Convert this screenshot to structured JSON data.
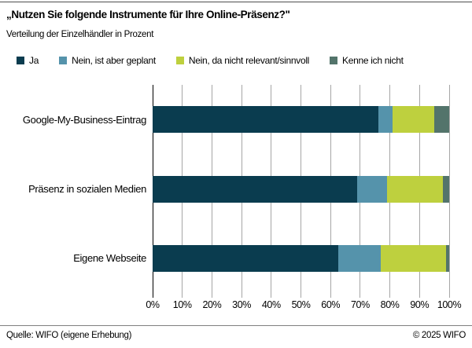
{
  "header": {
    "title": "„Nutzen Sie folgende Instrumente für Ihre Online-Präsenz?\"",
    "subtitle": "Verteilung der Einzelhändler in Prozent"
  },
  "footer": {
    "source": "Quelle: WIFO (eigene Erhebung)",
    "copyright": "© 2025 WIFO"
  },
  "colors": {
    "ja": "#0a3c4f",
    "geplant": "#5593ab",
    "nicht_relevant": "#bed03e",
    "kenne_nicht": "#53746b",
    "gridline": "#a6a6a6",
    "axis": "#000000"
  },
  "chart_data": {
    "type": "bar",
    "orientation": "horizontal-stacked",
    "title": "„Nutzen Sie folgende Instrumente für Ihre Online-Präsenz?\"",
    "subtitle": "Verteilung der Einzelhändler in Prozent",
    "categories": [
      "Google-My-Business-Eintrag",
      "Präsenz in sozialen Medien",
      "Eigene Webseite"
    ],
    "series": [
      {
        "name": "Ja",
        "color": "#0a3c4f",
        "values": [
          76,
          69,
          62.5
        ]
      },
      {
        "name": "Nein, ist aber geplant",
        "color": "#5593ab",
        "values": [
          5,
          10,
          14.5
        ]
      },
      {
        "name": "Nein, da nicht relevant/sinnvoll",
        "color": "#bed03e",
        "values": [
          14,
          19,
          22
        ]
      },
      {
        "name": "Kenne ich nicht",
        "color": "#53746b",
        "values": [
          5,
          2,
          1
        ]
      }
    ],
    "xlabel": "",
    "ylabel": "",
    "xlim": [
      0,
      100
    ],
    "x_ticks": [
      "0%",
      "10%",
      "20%",
      "30%",
      "40%",
      "50%",
      "60%",
      "70%",
      "80%",
      "90%",
      "100%"
    ],
    "grid": true,
    "legend_position": "top"
  }
}
